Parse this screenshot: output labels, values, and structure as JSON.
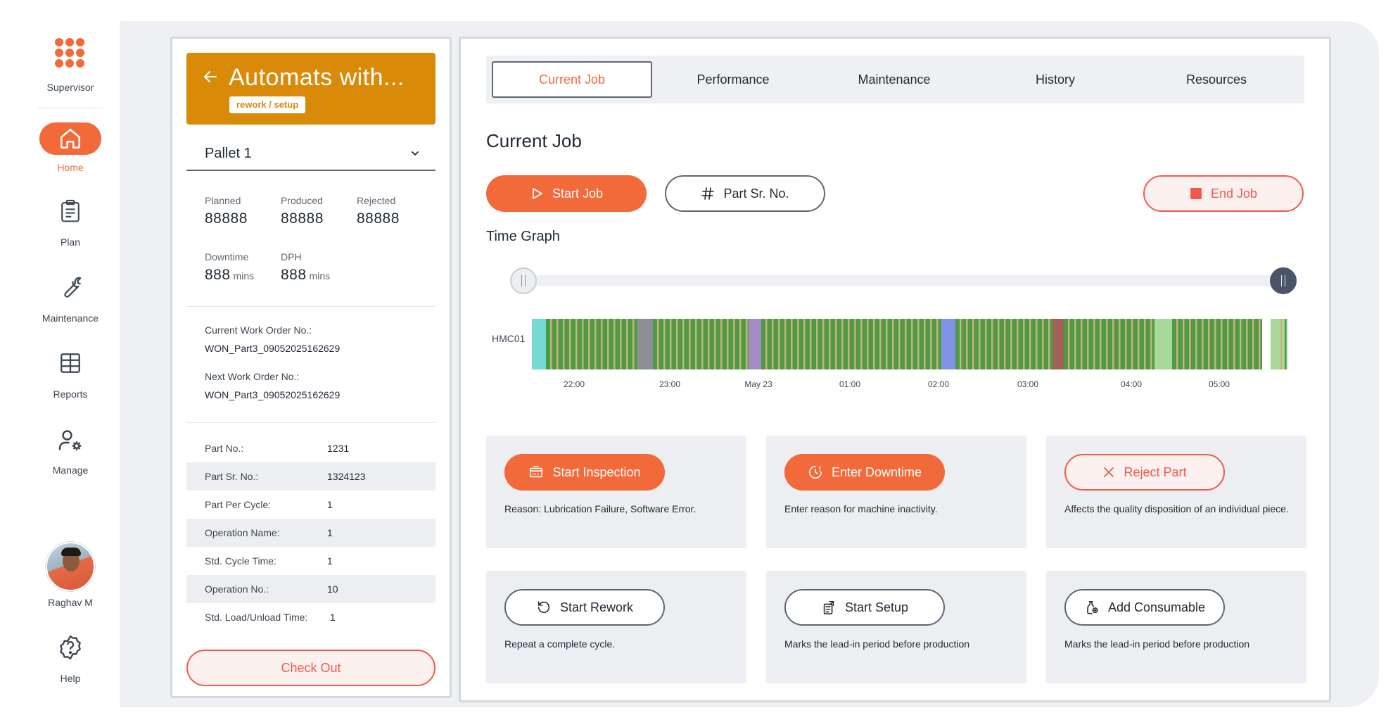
{
  "sidebar": {
    "brand_label": "Supervisor",
    "items": [
      {
        "label": "Home",
        "icon": "home-icon",
        "active": true
      },
      {
        "label": "Plan",
        "icon": "clipboard-icon"
      },
      {
        "label": "Maintenance",
        "icon": "wrench-icon"
      },
      {
        "label": "Reports",
        "icon": "grid-icon"
      },
      {
        "label": "Manage",
        "icon": "user-gear-icon"
      }
    ],
    "user_name": "Raghav M",
    "help_label": "Help"
  },
  "machine": {
    "title": "Automats with...",
    "status_chip": "rework / setup",
    "pallet": "Pallet 1"
  },
  "stats": {
    "planned_label": "Planned",
    "planned": "88888",
    "produced_label": "Produced",
    "produced": "88888",
    "rejected_label": "Rejected",
    "rejected": "88888",
    "downtime_label": "Downtime",
    "downtime": "888",
    "downtime_unit": "mins",
    "dph_label": "DPH",
    "dph": "888",
    "dph_unit": "mins"
  },
  "work_orders": {
    "current_label": "Current Work Order No.:",
    "current": "WON_Part3_09052025162629",
    "next_label": "Next Work Order No.:",
    "next": "WON_Part3_09052025162629"
  },
  "part_details": [
    {
      "key": "Part No.:",
      "value": "1231"
    },
    {
      "key": "Part Sr. No.:",
      "value": "1324123"
    },
    {
      "key": "Part Per Cycle:",
      "value": "1"
    },
    {
      "key": "Operation Name:",
      "value": "1"
    },
    {
      "key": "Std. Cycle Time:",
      "value": "1"
    },
    {
      "key": "Operation No.:",
      "value": "10"
    },
    {
      "key": "Std. Load/Unload Time:",
      "value": "1"
    }
  ],
  "checkout_label": "Check Out",
  "tabs": [
    "Current Job",
    "Performance",
    "Maintenance",
    "History",
    "Resources"
  ],
  "active_tab": "Current Job",
  "section_title": "Current Job",
  "actions": {
    "start_job": "Start Job",
    "part_sr_no": "Part Sr. No.",
    "end_job": "End Job"
  },
  "time_graph": {
    "title": "Time Graph",
    "machine": "HMC01",
    "ticks": [
      "22:00",
      "23:00",
      "May 23",
      "01:00",
      "02:00",
      "03:00",
      "04:00",
      "05:00"
    ]
  },
  "cards": [
    {
      "button": "Start Inspection",
      "icon": "inspection-icon",
      "style": "solid",
      "desc": "Reason: Lubrication Failure, Software Error."
    },
    {
      "button": "Enter Downtime",
      "icon": "clock-alert-icon",
      "style": "solid",
      "desc": "Enter reason for machine inactivity."
    },
    {
      "button": "Reject Part",
      "icon": "close-icon",
      "style": "danger",
      "desc": "Affects the quality disposition of an individual piece."
    },
    {
      "button": "Start Rework",
      "icon": "rotate-icon",
      "style": "outline",
      "desc": "Repeat a complete cycle."
    },
    {
      "button": "Start Setup",
      "icon": "setup-icon",
      "style": "outline",
      "desc": "Marks the lead-in period before production"
    },
    {
      "button": "Add Consumable",
      "icon": "consumable-icon",
      "style": "outline",
      "desc": "Marks the lead-in period before production"
    }
  ],
  "colors": {
    "accent": "#f26a3a",
    "header": "#d98a08",
    "danger": "#f05a4a",
    "running": "#4f9a45",
    "idle": "#c8b27a",
    "setup": "#76dad4",
    "stopped": "#8c8f96",
    "maintenance": "#a38cc8",
    "downtime": "#7f94e6",
    "breakdown": "#a06258",
    "light_running": "#a9d99a"
  }
}
